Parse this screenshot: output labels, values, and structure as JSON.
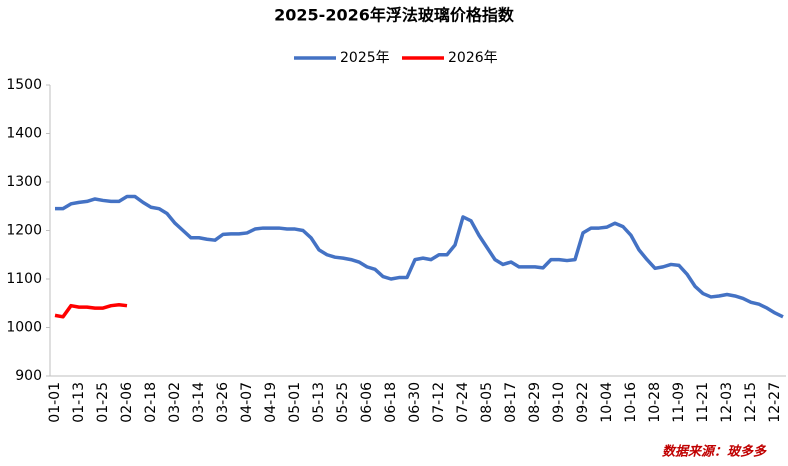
{
  "chart_data": {
    "type": "line",
    "title": "2025-2026年浮法玻璃价格指数",
    "source": "数据来源：玻多多",
    "categories": [
      "01-01",
      null,
      null,
      "01-13",
      null,
      null,
      "01-25",
      null,
      null,
      "02-06",
      null,
      null,
      "02-18",
      null,
      null,
      "03-02",
      null,
      null,
      "03-14",
      null,
      null,
      "03-26",
      null,
      null,
      "04-07",
      null,
      null,
      "04-19",
      null,
      null,
      "05-01",
      null,
      null,
      "05-13",
      null,
      null,
      "05-25",
      null,
      null,
      "06-06",
      null,
      null,
      "06-18",
      null,
      null,
      "06-30",
      null,
      null,
      "07-12",
      null,
      null,
      "07-24",
      null,
      null,
      "08-05",
      null,
      null,
      "08-17",
      null,
      null,
      "08-29",
      null,
      null,
      "09-10",
      null,
      null,
      "09-22",
      null,
      null,
      "10-04",
      null,
      null,
      "10-16",
      null,
      null,
      "10-28",
      null,
      null,
      "11-09",
      null,
      null,
      "11-21",
      null,
      null,
      "12-03",
      null,
      null,
      "12-15",
      null,
      null,
      "12-27",
      null
    ],
    "series": [
      {
        "name": "2025年",
        "color": "#4472c4",
        "values": [
          1245,
          1245,
          1255,
          1258,
          1260,
          1265,
          1262,
          1260,
          1260,
          1270,
          1270,
          1258,
          1248,
          1245,
          1235,
          1215,
          1200,
          1185,
          1185,
          1182,
          1180,
          1192,
          1193,
          1193,
          1195,
          1203,
          1205,
          1205,
          1205,
          1203,
          1203,
          1200,
          1185,
          1160,
          1150,
          1145,
          1143,
          1140,
          1135,
          1125,
          1120,
          1105,
          1100,
          1103,
          1103,
          1140,
          1143,
          1140,
          1150,
          1150,
          1170,
          1228,
          1220,
          1190,
          1165,
          1140,
          1130,
          1135,
          1125,
          1125,
          1125,
          1123,
          1140,
          1140,
          1138,
          1140,
          1195,
          1205,
          1205,
          1207,
          1215,
          1208,
          1190,
          1160,
          1140,
          1122,
          1125,
          1130,
          1128,
          1110,
          1085,
          1070,
          1063,
          1065,
          1068,
          1065,
          1060,
          1052,
          1048,
          1040,
          1030,
          1022
        ]
      },
      {
        "name": "2026年",
        "color": "#ff0000",
        "values": [
          1025,
          1022,
          1045,
          1042,
          1042,
          1040,
          1040,
          1045,
          1047,
          1045,
          null,
          null,
          null,
          null,
          null,
          null,
          null,
          null,
          null,
          null,
          null,
          null,
          null,
          null,
          null,
          null,
          null,
          null,
          null,
          null,
          null,
          null,
          null,
          null,
          null,
          null,
          null,
          null,
          null,
          null,
          null,
          null,
          null,
          null,
          null,
          null,
          null,
          null,
          null,
          null,
          null,
          null,
          null,
          null,
          null,
          null,
          null,
          null,
          null,
          null,
          null,
          null,
          null,
          null,
          null,
          null,
          null,
          null,
          null,
          null,
          null,
          null,
          null,
          null,
          null,
          null,
          null,
          null,
          null,
          null,
          null,
          null,
          null,
          null,
          null,
          null,
          null,
          null,
          null,
          null,
          null,
          null
        ]
      }
    ],
    "ylim": [
      900,
      1500
    ],
    "yticks": [
      900,
      1000,
      1100,
      1200,
      1300,
      1400,
      1500
    ],
    "grid": false,
    "legend": "top"
  }
}
